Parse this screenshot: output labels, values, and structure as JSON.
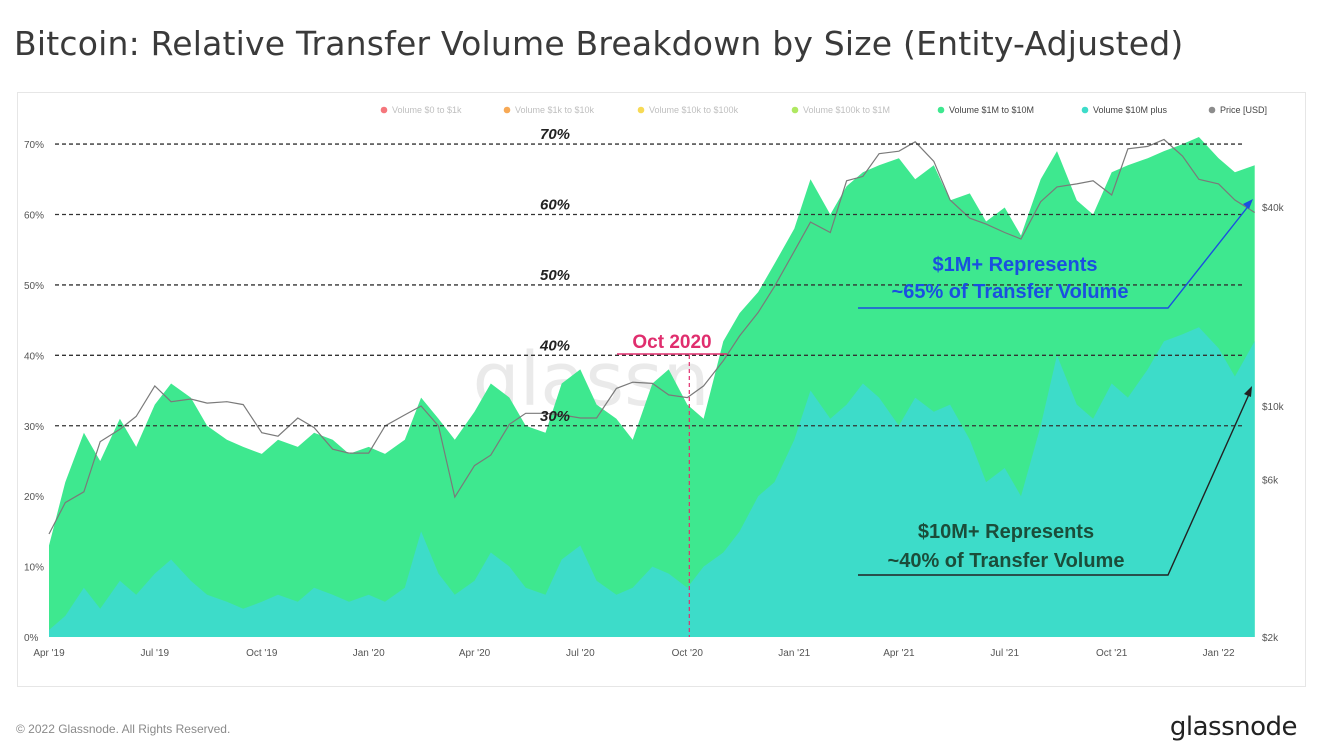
{
  "header": {
    "title": "Bitcoin: Relative Transfer Volume Breakdown by Size (Entity-Adjusted)"
  },
  "footer": {
    "copyright": "© 2022 Glassnode. All Rights Reserved.",
    "brand": "glassnode"
  },
  "watermark": "glassnode",
  "colors": {
    "green": "#3ee88f",
    "teal": "#3ddcc9",
    "price": "#8c8c8c",
    "annotation_blue": "#1a4fe0",
    "annotation_dark": "#1b4d3a",
    "annotation_red": "#e02e6e"
  },
  "chart_data": {
    "type": "area",
    "title": "Bitcoin: Relative Transfer Volume Breakdown by Size (Entity-Adjusted)",
    "x_ticks": [
      "Apr '19",
      "Jul '19",
      "Oct '19",
      "Jan '20",
      "Apr '20",
      "Jul '20",
      "Oct '20",
      "Jan '21",
      "Apr '21",
      "Jul '21",
      "Oct '21",
      "Jan '22"
    ],
    "y_left_ticks": [
      "0%",
      "10%",
      "20%",
      "30%",
      "40%",
      "50%",
      "60%",
      "70%"
    ],
    "y_left_range": [
      0,
      0.72
    ],
    "y_right_ticks": [
      "$2k",
      "$6k",
      "$10k",
      "$40k"
    ],
    "y_right_scale": "log",
    "legend_position": "top-right",
    "legend": [
      {
        "name": "Volume $0 to $1k",
        "color": "#f2545b",
        "faded": true
      },
      {
        "name": "Volume $1k to $10k",
        "color": "#f5932a",
        "faded": true
      },
      {
        "name": "Volume $10k to $100k",
        "color": "#f5d12a",
        "faded": true
      },
      {
        "name": "Volume $100k to $1M",
        "color": "#9be23a",
        "faded": true
      },
      {
        "name": "Volume $1M to $10M",
        "color": "#3ee88f",
        "faded": false
      },
      {
        "name": "Volume $10M plus",
        "color": "#3ddcc9",
        "faded": false
      },
      {
        "name": "Price [USD]",
        "color": "#8c8c8c",
        "faded": false
      }
    ],
    "series": [
      {
        "name": "Volume $1M+ (cumulative, top of green area)",
        "x": [
          "2019-04-01",
          "2019-04-15",
          "2019-05-01",
          "2019-05-15",
          "2019-06-01",
          "2019-06-15",
          "2019-07-01",
          "2019-07-15",
          "2019-08-01",
          "2019-08-15",
          "2019-09-01",
          "2019-09-15",
          "2019-10-01",
          "2019-10-15",
          "2019-11-01",
          "2019-11-15",
          "2019-12-01",
          "2019-12-15",
          "2020-01-01",
          "2020-01-15",
          "2020-02-01",
          "2020-02-15",
          "2020-03-01",
          "2020-03-15",
          "2020-04-01",
          "2020-04-15",
          "2020-05-01",
          "2020-05-15",
          "2020-06-01",
          "2020-06-15",
          "2020-07-01",
          "2020-07-15",
          "2020-08-01",
          "2020-08-15",
          "2020-09-01",
          "2020-09-15",
          "2020-10-01",
          "2020-10-15",
          "2020-11-01",
          "2020-11-15",
          "2020-12-01",
          "2020-12-15",
          "2021-01-01",
          "2021-01-15",
          "2021-02-01",
          "2021-02-15",
          "2021-03-01",
          "2021-03-15",
          "2021-04-01",
          "2021-04-15",
          "2021-05-01",
          "2021-05-15",
          "2021-06-01",
          "2021-06-15",
          "2021-07-01",
          "2021-07-15",
          "2021-08-01",
          "2021-08-15",
          "2021-09-01",
          "2021-09-15",
          "2021-10-01",
          "2021-10-15",
          "2021-11-01",
          "2021-11-15",
          "2021-12-01",
          "2021-12-15",
          "2022-01-01",
          "2022-01-15",
          "2022-02-01"
        ],
        "values": [
          0.13,
          0.22,
          0.29,
          0.25,
          0.31,
          0.27,
          0.33,
          0.36,
          0.34,
          0.3,
          0.28,
          0.27,
          0.26,
          0.28,
          0.27,
          0.29,
          0.28,
          0.26,
          0.27,
          0.26,
          0.28,
          0.34,
          0.31,
          0.28,
          0.32,
          0.36,
          0.34,
          0.3,
          0.29,
          0.36,
          0.38,
          0.33,
          0.31,
          0.28,
          0.36,
          0.38,
          0.33,
          0.31,
          0.42,
          0.46,
          0.49,
          0.53,
          0.58,
          0.65,
          0.6,
          0.64,
          0.66,
          0.67,
          0.68,
          0.65,
          0.67,
          0.62,
          0.63,
          0.59,
          0.61,
          0.57,
          0.65,
          0.69,
          0.62,
          0.6,
          0.66,
          0.67,
          0.68,
          0.69,
          0.7,
          0.71,
          0.68,
          0.66,
          0.67
        ]
      },
      {
        "name": "Volume $10M plus",
        "x": [
          "2019-04-01",
          "2019-04-15",
          "2019-05-01",
          "2019-05-15",
          "2019-06-01",
          "2019-06-15",
          "2019-07-01",
          "2019-07-15",
          "2019-08-01",
          "2019-08-15",
          "2019-09-01",
          "2019-09-15",
          "2019-10-01",
          "2019-10-15",
          "2019-11-01",
          "2019-11-15",
          "2019-12-01",
          "2019-12-15",
          "2020-01-01",
          "2020-01-15",
          "2020-02-01",
          "2020-02-15",
          "2020-03-01",
          "2020-03-15",
          "2020-04-01",
          "2020-04-15",
          "2020-05-01",
          "2020-05-15",
          "2020-06-01",
          "2020-06-15",
          "2020-07-01",
          "2020-07-15",
          "2020-08-01",
          "2020-08-15",
          "2020-09-01",
          "2020-09-15",
          "2020-10-01",
          "2020-10-15",
          "2020-11-01",
          "2020-11-15",
          "2020-12-01",
          "2020-12-15",
          "2021-01-01",
          "2021-01-15",
          "2021-02-01",
          "2021-02-15",
          "2021-03-01",
          "2021-03-15",
          "2021-04-01",
          "2021-04-15",
          "2021-05-01",
          "2021-05-15",
          "2021-06-01",
          "2021-06-15",
          "2021-07-01",
          "2021-07-15",
          "2021-08-01",
          "2021-08-15",
          "2021-09-01",
          "2021-09-15",
          "2021-10-01",
          "2021-10-15",
          "2021-11-01",
          "2021-11-15",
          "2021-12-01",
          "2021-12-15",
          "2022-01-01",
          "2022-01-15",
          "2022-02-01"
        ],
        "values": [
          0.01,
          0.03,
          0.07,
          0.04,
          0.08,
          0.06,
          0.09,
          0.11,
          0.08,
          0.06,
          0.05,
          0.04,
          0.05,
          0.06,
          0.05,
          0.07,
          0.06,
          0.05,
          0.06,
          0.05,
          0.07,
          0.15,
          0.09,
          0.06,
          0.08,
          0.12,
          0.1,
          0.07,
          0.06,
          0.11,
          0.13,
          0.08,
          0.06,
          0.07,
          0.1,
          0.09,
          0.07,
          0.1,
          0.12,
          0.15,
          0.2,
          0.22,
          0.28,
          0.35,
          0.31,
          0.33,
          0.36,
          0.34,
          0.3,
          0.34,
          0.32,
          0.33,
          0.28,
          0.22,
          0.24,
          0.2,
          0.3,
          0.4,
          0.33,
          0.31,
          0.36,
          0.34,
          0.38,
          0.42,
          0.43,
          0.44,
          0.41,
          0.37,
          0.42
        ]
      },
      {
        "name": "Price [USD]",
        "x": [
          "2019-04-01",
          "2019-04-15",
          "2019-05-01",
          "2019-05-15",
          "2019-06-01",
          "2019-06-15",
          "2019-07-01",
          "2019-07-15",
          "2019-08-01",
          "2019-08-15",
          "2019-09-01",
          "2019-09-15",
          "2019-10-01",
          "2019-10-15",
          "2019-11-01",
          "2019-11-15",
          "2019-12-01",
          "2019-12-15",
          "2020-01-01",
          "2020-01-15",
          "2020-02-01",
          "2020-02-15",
          "2020-03-01",
          "2020-03-15",
          "2020-04-01",
          "2020-04-15",
          "2020-05-01",
          "2020-05-15",
          "2020-06-01",
          "2020-06-15",
          "2020-07-01",
          "2020-07-15",
          "2020-08-01",
          "2020-08-15",
          "2020-09-01",
          "2020-09-15",
          "2020-10-01",
          "2020-10-15",
          "2020-11-01",
          "2020-11-15",
          "2020-12-01",
          "2020-12-15",
          "2021-01-01",
          "2021-01-15",
          "2021-02-01",
          "2021-02-15",
          "2021-03-01",
          "2021-03-15",
          "2021-04-01",
          "2021-04-15",
          "2021-05-01",
          "2021-05-15",
          "2021-06-01",
          "2021-06-15",
          "2021-07-01",
          "2021-07-15",
          "2021-08-01",
          "2021-08-15",
          "2021-09-01",
          "2021-09-15",
          "2021-10-01",
          "2021-10-15",
          "2021-11-01",
          "2021-11-15",
          "2021-12-01",
          "2021-12-15",
          "2022-01-01",
          "2022-01-15",
          "2022-02-01"
        ],
        "values": [
          4100,
          5100,
          5500,
          7800,
          8500,
          9300,
          11500,
          10300,
          10500,
          10200,
          10300,
          10100,
          8300,
          8100,
          9200,
          8600,
          7400,
          7200,
          7200,
          8700,
          9400,
          10000,
          8700,
          5300,
          6600,
          7100,
          8800,
          9500,
          9500,
          9400,
          9200,
          9200,
          11300,
          11800,
          11700,
          10800,
          10600,
          11500,
          13700,
          16300,
          19200,
          23000,
          29400,
          36000,
          33500,
          48000,
          49500,
          58000,
          59000,
          63000,
          55000,
          42000,
          37000,
          35500,
          33500,
          32000,
          41500,
          46000,
          47000,
          48000,
          43500,
          60000,
          61000,
          64000,
          57000,
          48500,
          47000,
          42000,
          38500
        ]
      }
    ],
    "annotations": {
      "reference_lines": [
        {
          "value": 0.3,
          "label": "30%"
        },
        {
          "value": 0.4,
          "label": "40%"
        },
        {
          "value": 0.5,
          "label": "50%"
        },
        {
          "value": 0.6,
          "label": "60%"
        },
        {
          "value": 0.7,
          "label": "70%"
        }
      ],
      "vertical_marker": {
        "x": "2020-10-01",
        "label": "Oct 2020"
      },
      "callout_1m": {
        "line1": "$1M+ Represents",
        "line2": "~65% of Transfer Volume"
      },
      "callout_10m": {
        "line1": "$10M+ Represents",
        "line2": "~40% of Transfer Volume"
      }
    }
  }
}
